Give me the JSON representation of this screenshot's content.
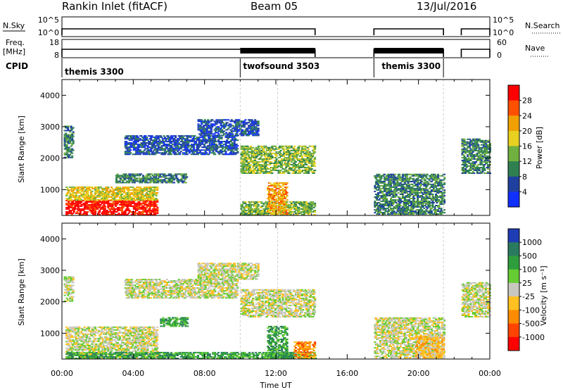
{
  "header": {
    "title": "Rankin Inlet (fitACF)",
    "beam": "Beam 05",
    "date": "13/Jul/2016"
  },
  "strip_nsky": {
    "label": "N.Sky",
    "left_ticks": [
      "10^5",
      "10^0"
    ],
    "right_ticks": [
      "10^5",
      "10^0"
    ],
    "right_label": "N.Search"
  },
  "strip_freq": {
    "label_top": "Freq.",
    "label_unit": "[MHz]",
    "left_ticks": [
      "18",
      "8"
    ],
    "right_ticks": [
      "60",
      "0"
    ],
    "right_label": "Nave"
  },
  "cpid": {
    "label": "CPID",
    "segments": [
      {
        "name": "themis 3300",
        "start": 0.0,
        "end": 10.0
      },
      {
        "name": "twofsound 3503",
        "start": 10.0,
        "end": 14.2
      },
      {
        "name": "themis 3300",
        "start": 17.5,
        "end": 21.4
      }
    ]
  },
  "chart_data": [
    {
      "type": "heatmap",
      "name": "power",
      "xlabel": "",
      "ylabel": "Slant Range [km]",
      "xlim": [
        0,
        24
      ],
      "ylim": [
        180,
        4500
      ],
      "yticks": [
        "1000",
        "2000",
        "3000",
        "4000"
      ],
      "colorbar": {
        "label": "Power [dB]",
        "ticks": [
          "4",
          "8",
          "12",
          "16",
          "20",
          "24",
          "28"
        ],
        "colors": [
          "#1030ff",
          "#2040a0",
          "#2f8050",
          "#70b040",
          "#e8d020",
          "#f0a000",
          "#ff5000",
          "#ff0000"
        ]
      },
      "data_windows_hours": [
        [
          0.0,
          14.2
        ],
        [
          17.5,
          21.4
        ],
        [
          22.4,
          24.0
        ]
      ],
      "regions": [
        {
          "x0": 0.2,
          "x1": 5.3,
          "y0": 180,
          "y1": 650,
          "level": "28"
        },
        {
          "x0": 0.2,
          "x1": 5.3,
          "y0": 650,
          "y1": 1100,
          "level": "16"
        },
        {
          "x0": 0.1,
          "x1": 0.6,
          "y0": 2000,
          "y1": 3000,
          "level": "8"
        },
        {
          "x0": 3.0,
          "x1": 7.0,
          "y0": 1200,
          "y1": 1500,
          "level": "8"
        },
        {
          "x0": 3.5,
          "x1": 9.8,
          "y0": 2100,
          "y1": 2700,
          "level": "4"
        },
        {
          "x0": 7.6,
          "x1": 11.0,
          "y0": 2700,
          "y1": 3200,
          "level": "4"
        },
        {
          "x0": 10.0,
          "x1": 14.2,
          "y0": 1500,
          "y1": 2400,
          "level": "12"
        },
        {
          "x0": 10.0,
          "x1": 14.2,
          "y0": 180,
          "y1": 600,
          "level": "12"
        },
        {
          "x0": 11.5,
          "x1": 12.6,
          "y0": 200,
          "y1": 1200,
          "level": "20"
        },
        {
          "x0": 17.5,
          "x1": 21.4,
          "y0": 200,
          "y1": 1500,
          "level": "8"
        },
        {
          "x0": 22.4,
          "x1": 24.0,
          "y0": 1500,
          "y1": 2600,
          "level": "8"
        }
      ]
    },
    {
      "type": "heatmap",
      "name": "velocity",
      "xlabel": "Time UT",
      "ylabel": "Slant Range [km]",
      "xlim": [
        0,
        24
      ],
      "ylim": [
        180,
        4500
      ],
      "yticks": [
        "1000",
        "2000",
        "3000",
        "4000"
      ],
      "xticks": [
        "00:00",
        "04:00",
        "08:00",
        "12:00",
        "16:00",
        "20:00",
        "00:00"
      ],
      "colorbar": {
        "label": "Velocity [m s⁻¹]",
        "ticks": [
          "1000",
          "500",
          "100",
          "25",
          "-25",
          "-100",
          "-500",
          "-1000"
        ],
        "colors": [
          "#1e3cb4",
          "#2a7a60",
          "#2e9e3c",
          "#66cc33",
          "#c8c8c0",
          "#ffc020",
          "#ff8c00",
          "#ff4400",
          "#ff0000"
        ]
      },
      "data_windows_hours": [
        [
          0.0,
          14.2
        ],
        [
          17.5,
          21.4
        ],
        [
          22.4,
          24.0
        ]
      ],
      "regions": [
        {
          "x0": 0.2,
          "x1": 5.3,
          "y0": 180,
          "y1": 1200,
          "level": "-25"
        },
        {
          "x0": 0.2,
          "x1": 14.2,
          "y0": 180,
          "y1": 400,
          "level": "100"
        },
        {
          "x0": 0.1,
          "x1": 0.6,
          "y0": 2000,
          "y1": 2800,
          "level": "-25"
        },
        {
          "x0": 5.5,
          "x1": 7.0,
          "y0": 1200,
          "y1": 1500,
          "level": "100"
        },
        {
          "x0": 3.5,
          "x1": 9.8,
          "y0": 2100,
          "y1": 2700,
          "level": "-25"
        },
        {
          "x0": 7.6,
          "x1": 11.0,
          "y0": 2700,
          "y1": 3200,
          "level": "-25"
        },
        {
          "x0": 10.0,
          "x1": 14.2,
          "y0": 1500,
          "y1": 2400,
          "level": "-25"
        },
        {
          "x0": 11.5,
          "x1": 12.6,
          "y0": 200,
          "y1": 1200,
          "level": "100"
        },
        {
          "x0": 13.0,
          "x1": 14.2,
          "y0": 200,
          "y1": 700,
          "level": "-500"
        },
        {
          "x0": 17.5,
          "x1": 21.4,
          "y0": 200,
          "y1": 1500,
          "level": "-25"
        },
        {
          "x0": 19.8,
          "x1": 21.4,
          "y0": 200,
          "y1": 900,
          "level": "-100"
        },
        {
          "x0": 22.4,
          "x1": 24.0,
          "y0": 1500,
          "y1": 2600,
          "level": "-25"
        }
      ]
    }
  ]
}
